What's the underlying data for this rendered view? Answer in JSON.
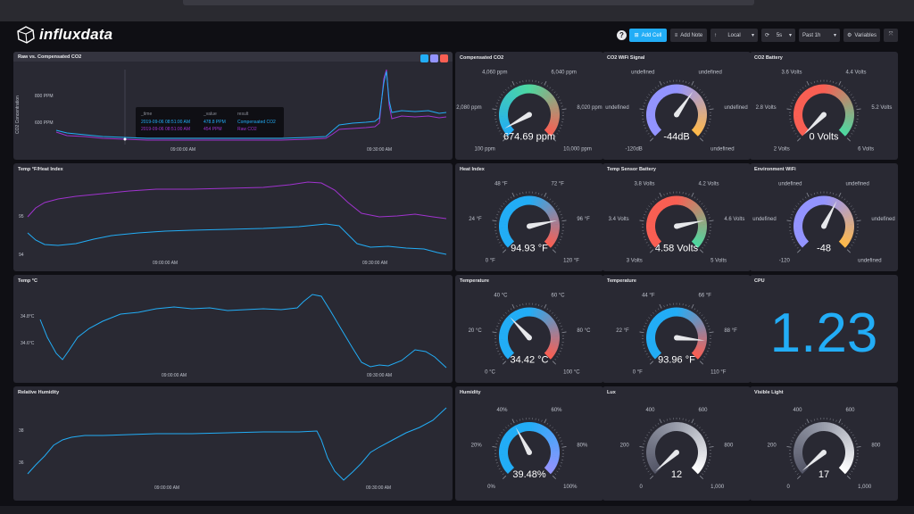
{
  "header": {
    "logo_text": "influxdata",
    "help_label": "?",
    "add_cell_label": "Add Cell",
    "add_note_label": "Add Note",
    "timezone_label": "Local",
    "refresh_label": "5s",
    "time_range_label": "Past 1h",
    "variables_label": "Variables"
  },
  "cells": {
    "raw_vs_comp": {
      "title": "Raw vs. Compensated CO2",
      "ylabel": "CO2 Concentration",
      "yticks": [
        "800 PPM",
        "600 PPM"
      ],
      "xticks": [
        "09:00:00 AM",
        "09:30:00 AM"
      ],
      "tooltip": {
        "headers": [
          "_time",
          "_value",
          "result"
        ],
        "rows": [
          {
            "time": "2019-09-06 08:51:00 AM",
            "value": "478.8 PPM",
            "result": "Compensated CO2",
            "color": "#22adf6"
          },
          {
            "time": "2019-09-06 08:51:00 AM",
            "value": "454 PPM",
            "result": "Raw CO2",
            "color": "#a033ce"
          }
        ]
      }
    },
    "temp_heat": {
      "title": "Temp °F/Heat Index",
      "yticks": [
        "95",
        "94"
      ],
      "xticks": [
        "09:00:00 AM",
        "09:30:00 AM"
      ]
    },
    "temp_c": {
      "title": "Temp °C",
      "yticks": [
        "34.8°C",
        "34.6°C"
      ],
      "xticks": [
        "09:00:00 AM",
        "09:30:00 AM"
      ]
    },
    "humidity_graph": {
      "title": "Relative Humidity",
      "yticks": [
        "38",
        "36"
      ],
      "xticks": [
        "09:00:00 AM",
        "09:30:00 AM"
      ]
    },
    "cpu": {
      "title": "CPU",
      "value": "1.23",
      "color": "#22adf6"
    }
  },
  "gauges": [
    {
      "title": "Compensated CO2",
      "labels": [
        "100 ppm",
        "2,080 ppm",
        "4,060 ppm",
        "6,040 ppm",
        "8,020 ppm",
        "10,000 ppm"
      ],
      "value_text": "674.69 ppm",
      "fraction": 0.058,
      "colors": [
        "#22adf6",
        "#4ed8a0",
        "#f95f53"
      ]
    },
    {
      "title": "CO2 WiFi Signal",
      "labels": [
        "-120dB",
        "undefined",
        "undefined",
        "undefined",
        "undefined",
        "undefined"
      ],
      "value_text": "-44dB",
      "fraction": 0.63,
      "colors": [
        "#9394ff",
        "#9394ff",
        "#ffb94a"
      ]
    },
    {
      "title": "CO2 Battery",
      "labels": [
        "2 Volts",
        "2.8 Volts",
        "3.6 Volts",
        "4.4 Volts",
        "5.2 Volts",
        "6 Volts"
      ],
      "value_text": "0 Volts",
      "fraction": 0.0,
      "colors": [
        "#f95f53",
        "#f95f53",
        "#4ed8a0"
      ]
    },
    {
      "title": "Heat Index",
      "labels": [
        "0 °F",
        "24 °F",
        "48 °F",
        "72 °F",
        "96 °F",
        "120 °F"
      ],
      "value_text": "94.93 °F",
      "fraction": 0.79,
      "colors": [
        "#22adf6",
        "#22adf6",
        "#f95f53"
      ]
    },
    {
      "title": "Temp Sensor Battery",
      "labels": [
        "3 Volts",
        "3.4 Volts",
        "3.8 Volts",
        "4.2 Volts",
        "4.6 Volts",
        "5 Volts"
      ],
      "value_text": "4.58 Volts",
      "fraction": 0.79,
      "colors": [
        "#f95f53",
        "#f95f53",
        "#4ed8a0"
      ]
    },
    {
      "title": "Environment WiFi",
      "labels": [
        "-120",
        "undefined",
        "undefined",
        "undefined",
        "undefined",
        "undefined"
      ],
      "value_text": "-48",
      "fraction": 0.6,
      "colors": [
        "#9394ff",
        "#9394ff",
        "#ffb94a"
      ]
    },
    {
      "title": "Temperature",
      "labels": [
        "0 °C",
        "20 °C",
        "40 °C",
        "60 °C",
        "80 °C",
        "100 °C"
      ],
      "value_text": "34.42 °C",
      "fraction": 0.34,
      "colors": [
        "#22adf6",
        "#22adf6",
        "#f95f53"
      ]
    },
    {
      "title": "Temperature",
      "labels": [
        "0 °F",
        "22 °F",
        "44 °F",
        "66 °F",
        "88 °F",
        "110 °F"
      ],
      "value_text": "93.96 °F",
      "fraction": 0.854,
      "colors": [
        "#22adf6",
        "#22adf6",
        "#f95f53"
      ]
    },
    {
      "title": "Humidity",
      "labels": [
        "0%",
        "20%",
        "40%",
        "60%",
        "80%",
        "100%"
      ],
      "value_text": "39.48%",
      "fraction": 0.395,
      "colors": [
        "#22adf6",
        "#22adf6",
        "#9394ff"
      ]
    },
    {
      "title": "Lux",
      "labels": [
        "0",
        "200",
        "400",
        "600",
        "800",
        "1,000"
      ],
      "value_text": "12",
      "fraction": 0.012,
      "colors": [
        "#545667",
        "#999dab",
        "#ffffff"
      ]
    },
    {
      "title": "Visible Light",
      "labels": [
        "0",
        "200",
        "400",
        "600",
        "800",
        "1,000"
      ],
      "value_text": "17",
      "fraction": 0.017,
      "colors": [
        "#545667",
        "#999dab",
        "#ffffff"
      ]
    }
  ]
}
